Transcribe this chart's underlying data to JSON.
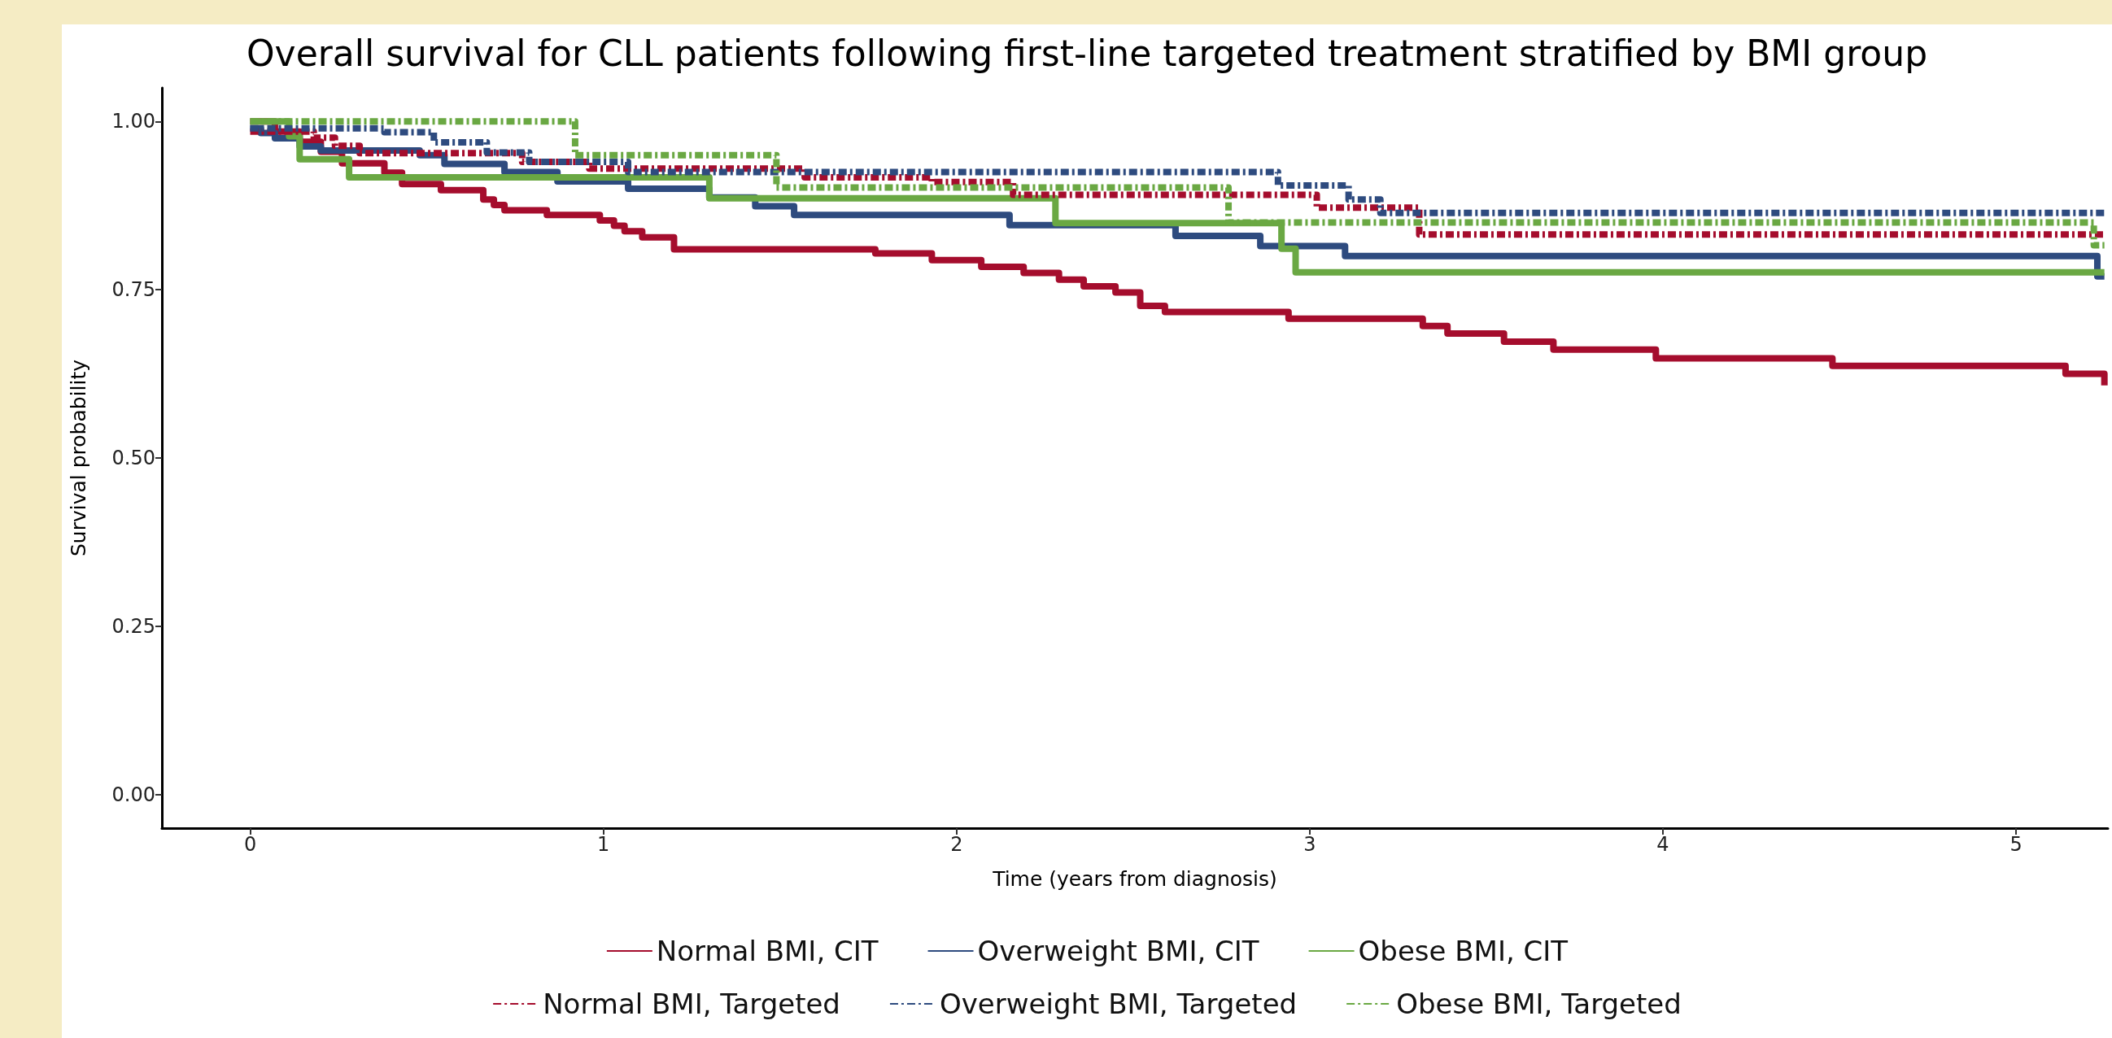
{
  "chart_data": {
    "type": "step",
    "title": "Overall survival for CLL patients following first-line targeted treatment stratified by BMI group",
    "xlabel": "Time (years from diagnosis)",
    "ylabel": "Survival probability",
    "xlim": [
      -0.25,
      5.26
    ],
    "ylim": [
      -0.05,
      1.05
    ],
    "xticks": [
      0,
      1,
      2,
      3,
      4,
      5
    ],
    "yticks": [
      {
        "value": 0,
        "label": "0.00"
      },
      {
        "value": 0.25,
        "label": "0.25"
      },
      {
        "value": 0.5,
        "label": "0.50"
      },
      {
        "value": 0.75,
        "label": "0.75"
      },
      {
        "value": 1,
        "label": "1.00"
      }
    ],
    "grid": false,
    "legend": "bottom",
    "marker": "none",
    "series": [
      {
        "name": "Normal BMI, CIT",
        "color": "#a50d2d",
        "line_style": "solid",
        "x": [
          0,
          0.07,
          0.14,
          0.2,
          0.26,
          0.38,
          0.43,
          0.54,
          0.66,
          0.69,
          0.72,
          0.84,
          0.99,
          1.03,
          1.06,
          1.11,
          1.2,
          1.77,
          1.93,
          2.07,
          2.19,
          2.29,
          2.36,
          2.45,
          2.52,
          2.59,
          2.94,
          3.32,
          3.39,
          3.55,
          3.69,
          3.98,
          4.48,
          5.14,
          5.25
        ],
        "values": [
          1,
          0.985,
          0.97,
          0.955,
          0.938,
          0.924,
          0.907,
          0.898,
          0.884,
          0.876,
          0.868,
          0.861,
          0.853,
          0.845,
          0.837,
          0.828,
          0.81,
          0.804,
          0.794,
          0.784,
          0.775,
          0.765,
          0.755,
          0.746,
          0.726,
          0.717,
          0.707,
          0.696,
          0.685,
          0.673,
          0.661,
          0.648,
          0.637,
          0.625,
          0.608
        ]
      },
      {
        "name": "Overweight BMI, CIT",
        "color": "#2e4b7f",
        "line_style": "solid",
        "x": [
          0,
          0.03,
          0.07,
          0.14,
          0.2,
          0.48,
          0.55,
          0.72,
          0.87,
          1.07,
          1.3,
          1.43,
          1.54,
          2.15,
          2.62,
          2.86,
          3.1,
          5.23,
          5.25
        ],
        "values": [
          0.99,
          0.983,
          0.975,
          0.963,
          0.957,
          0.95,
          0.937,
          0.925,
          0.911,
          0.9,
          0.887,
          0.874,
          0.861,
          0.846,
          0.83,
          0.815,
          0.8,
          0.77,
          0.77
        ]
      },
      {
        "name": "Obese BMI, CIT",
        "color": "#6aa843",
        "line_style": "solid",
        "x": [
          0,
          0.11,
          0.14,
          0.28,
          1.3,
          2.28,
          2.92,
          2.96,
          5.25
        ],
        "values": [
          1,
          0.978,
          0.944,
          0.917,
          0.886,
          0.849,
          0.811,
          0.776,
          0.776
        ]
      },
      {
        "name": "Normal BMI, Targeted",
        "color": "#a50d2d",
        "line_style": "dashed",
        "x": [
          0,
          0.18,
          0.24,
          0.31,
          0.77,
          0.96,
          1.57,
          1.93,
          2.16,
          3.02,
          3.31,
          5.25
        ],
        "values": [
          0.985,
          0.976,
          0.964,
          0.953,
          0.94,
          0.93,
          0.917,
          0.91,
          0.891,
          0.872,
          0.832,
          0.832
        ]
      },
      {
        "name": "Overweight BMI, Targeted",
        "color": "#2e4b7f",
        "line_style": "dashed",
        "x": [
          0,
          0.38,
          0.52,
          0.67,
          0.79,
          1.07,
          2.91,
          3.11,
          3.2,
          5.25
        ],
        "values": [
          0.99,
          0.984,
          0.969,
          0.954,
          0.94,
          0.925,
          0.905,
          0.884,
          0.864,
          0.864
        ]
      },
      {
        "name": "Obese BMI, Targeted",
        "color": "#6aa843",
        "line_style": "dashed",
        "x": [
          0,
          0.92,
          1.49,
          2.77,
          5.22,
          5.25
        ],
        "values": [
          1,
          0.95,
          0.902,
          0.85,
          0.816,
          0.816
        ]
      }
    ]
  }
}
